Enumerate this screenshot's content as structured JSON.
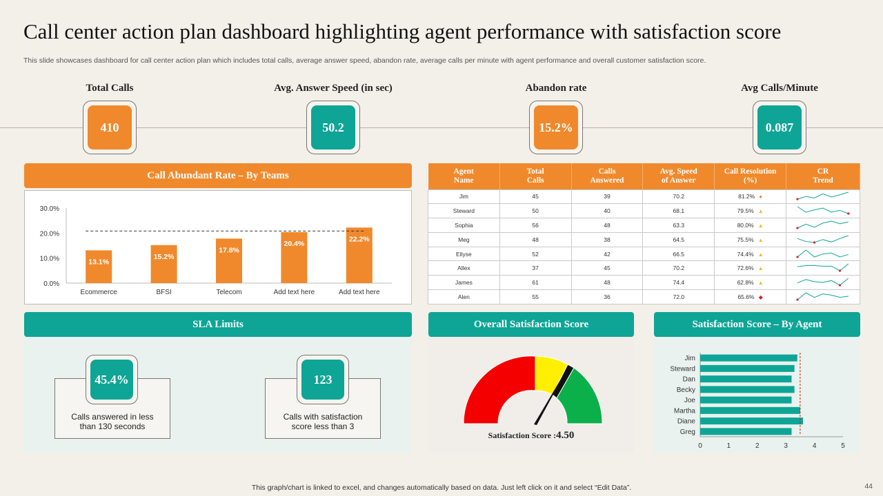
{
  "title": "Call center action plan dashboard highlighting agent performance with satisfaction score",
  "subtitle": "This slide showcases dashboard for call center action plan which includes total calls, average answer speed, abandon rate, average calls per minute with agent performance and overall customer satisfaction score.",
  "kpis": [
    {
      "label": "Total Calls",
      "value": "410",
      "color": "#f0892c"
    },
    {
      "label": "Avg. Answer  Speed (in sec)",
      "value": "50.2",
      "color": "#0ea596"
    },
    {
      "label": "Abandon  rate",
      "value": "15.2%",
      "color": "#f0892c"
    },
    {
      "label": "Avg Calls/Minute",
      "value": "0.087",
      "color": "#0ea596"
    }
  ],
  "abandon_panel": {
    "title": "Call Abundant  Rate – By Teams"
  },
  "agents_table": {
    "headers": [
      [
        "Agent",
        "Name"
      ],
      [
        "Total",
        "Calls"
      ],
      [
        "Calls",
        "Answered"
      ],
      [
        "Avg. Speed",
        "of Answer"
      ],
      [
        "Call Resolution",
        "(%)"
      ],
      [
        "CR",
        "Trend"
      ]
    ],
    "rows": [
      {
        "name": "Jim",
        "total": "45",
        "answered": "39",
        "speed": "70.2",
        "res": "81.2%",
        "icon": "●",
        "icon_color": "#f0892c",
        "trend": [
          4,
          4.5,
          4.2,
          5,
          4.4,
          4.8,
          5.3
        ]
      },
      {
        "name": "Steward",
        "total": "50",
        "answered": "40",
        "speed": "68.1",
        "res": "79.5%",
        "icon": "▲",
        "icon_color": "#f2b630",
        "trend": [
          5.5,
          4.3,
          4.8,
          5.2,
          4.3,
          4.7,
          4.0
        ]
      },
      {
        "name": "Sophia",
        "total": "56",
        "answered": "48",
        "speed": "63.3",
        "res": "80.0%",
        "icon": "▲",
        "icon_color": "#f2b630",
        "trend": [
          3,
          4,
          3.2,
          4.3,
          4.8,
          4.1,
          4.6
        ]
      },
      {
        "name": "Meg",
        "total": "48",
        "answered": "38",
        "speed": "64.5",
        "res": "75.5%",
        "icon": "▲",
        "icon_color": "#f2b630",
        "trend": [
          5,
          4.4,
          4.2,
          4.8,
          4.3,
          5,
          5.6
        ]
      },
      {
        "name": "Ellyse",
        "total": "52",
        "answered": "42",
        "speed": "66.5",
        "res": "74.4%",
        "icon": "▲",
        "icon_color": "#f2b630",
        "trend": [
          4,
          5.4,
          4,
          4.6,
          4.8,
          4.0,
          4.5
        ]
      },
      {
        "name": "Allex",
        "total": "37",
        "answered": "45",
        "speed": "70.2",
        "res": "72.6%",
        "icon": "▲",
        "icon_color": "#f2b630",
        "trend": [
          4.5,
          4.7,
          4.7,
          4.6,
          4.6,
          3.8,
          5.0
        ]
      },
      {
        "name": "James",
        "total": "61",
        "answered": "48",
        "speed": "74.4",
        "res": "62.8%",
        "icon": "▲",
        "icon_color": "#f2b630",
        "trend": [
          4.4,
          5,
          4.6,
          4.5,
          4.8,
          4.0,
          5.2
        ]
      },
      {
        "name": "Alen",
        "total": "55",
        "answered": "36",
        "speed": "72.0",
        "res": "65.6%",
        "icon": "◆",
        "icon_color": "#e02020",
        "trend": [
          4.2,
          4.8,
          4.4,
          4.7,
          4.6,
          4.4,
          4.5
        ]
      }
    ]
  },
  "sla": {
    "title": "SLA Limits",
    "items": [
      {
        "value": "45.4%",
        "text1": "Calls answered in less",
        "text2": "than 130 seconds"
      },
      {
        "value": "123",
        "text1": "Calls with satisfaction",
        "text2": "score less than 3"
      }
    ]
  },
  "satisfaction": {
    "title": "Overall Satisfaction Score",
    "label": "Satisfaction Score :",
    "value": "4.50",
    "score": 4.5,
    "max": 5
  },
  "agent_scores": {
    "title": "Satisfaction Score – By Agent"
  },
  "footer": "This graph/chart is linked to excel,  and changes automatically based on data. Just left click on it and select “Edit Data”.",
  "page_number": "44",
  "chart_data": [
    {
      "type": "bar",
      "title": "",
      "categories": [
        "Ecommerce",
        "BFSI",
        "Telecom",
        "Add text here",
        "Add text here"
      ],
      "values": [
        13.1,
        15.2,
        17.8,
        20.4,
        22.2
      ],
      "value_labels": [
        "13.1%",
        "15.2%",
        "17.8%",
        "20.4%",
        "22.2%"
      ],
      "ylim": [
        0,
        30
      ],
      "yticks": [
        "0.0%",
        "10.0%",
        "20.0%",
        "30.0%"
      ],
      "target_line": 20.8,
      "color": "#f0892c"
    },
    {
      "type": "bar",
      "orientation": "horizontal",
      "categories": [
        "Jim",
        "Steward",
        "Dan",
        "Becky",
        "Joe",
        "Martha",
        "Diane",
        "Greg"
      ],
      "values": [
        3.4,
        3.3,
        3.2,
        3.3,
        3.2,
        3.5,
        3.6,
        3.2
      ],
      "xlim": [
        0,
        5
      ],
      "xticks": [
        "0",
        "1",
        "2",
        "3",
        "4",
        "5"
      ],
      "target_line": 3.5,
      "color": "#0ea596"
    }
  ]
}
